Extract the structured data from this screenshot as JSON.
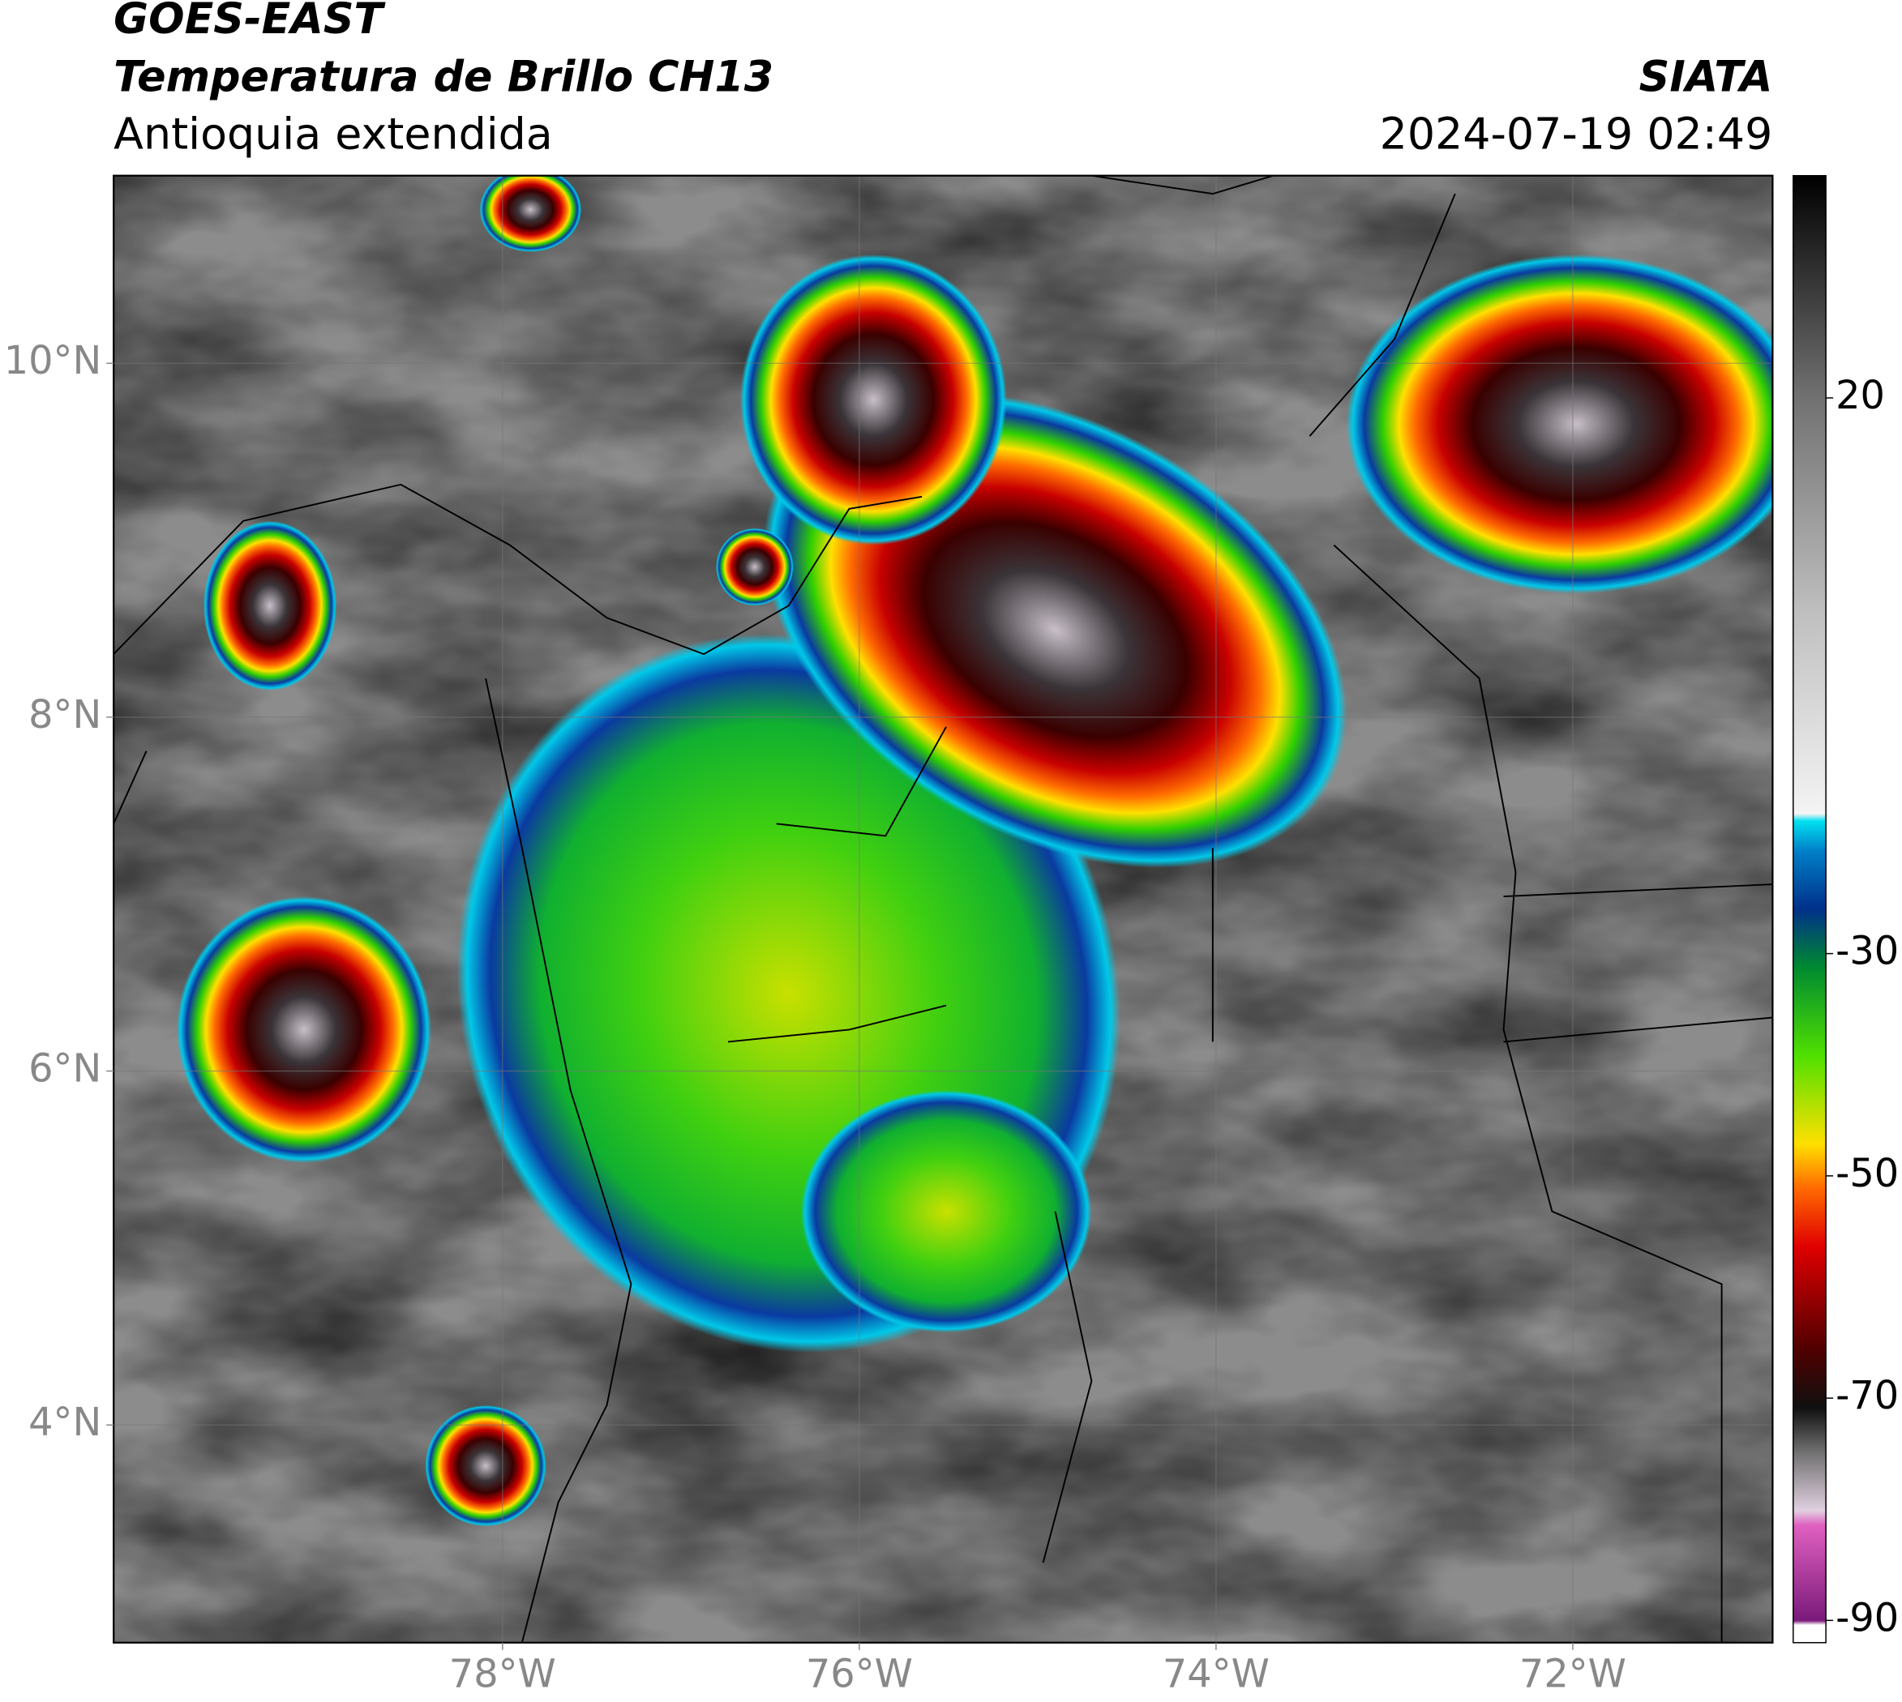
{
  "header": {
    "source": "GOES-EAST",
    "title": "Temperatura de Brillo CH13",
    "region": "Antioquia extendida",
    "agency": "SIATA",
    "datetime": "2024-07-19 02:49"
  },
  "map": {
    "xlim": [
      -80.18,
      -70.88
    ],
    "ylim": [
      2.77,
      11.06
    ],
    "lon_ticks": [
      {
        "value": -78,
        "label": "78°W"
      },
      {
        "value": -76,
        "label": "76°W"
      },
      {
        "value": -74,
        "label": "74°W"
      },
      {
        "value": -72,
        "label": "72°W"
      }
    ],
    "lat_ticks": [
      {
        "value": 10,
        "label": "10°N"
      },
      {
        "value": 8,
        "label": "8°N"
      },
      {
        "value": 6,
        "label": "6°N"
      },
      {
        "value": 4,
        "label": "4°N"
      }
    ],
    "grid": true
  },
  "colorbar": {
    "range": [
      -92,
      40
    ],
    "ticks": [
      20,
      -30,
      -50,
      -70,
      -90
    ]
  }
}
